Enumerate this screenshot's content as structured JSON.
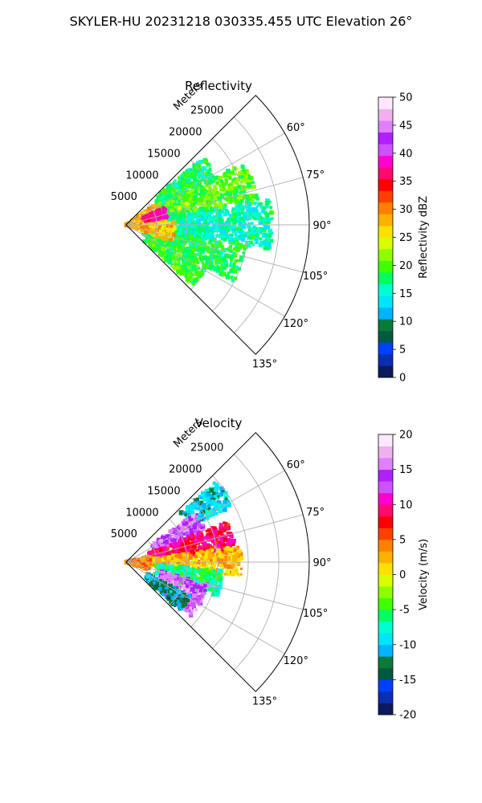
{
  "figure": {
    "suptitle": "SKYLER-HU  20231218  030335.455 UTC Elevation 26°"
  },
  "chart_data": [
    {
      "type": "heatmap",
      "subtype": "polar-sector",
      "title": "Reflectivity",
      "radial_label": "Meters",
      "radial_ticks": [
        5000,
        10000,
        15000,
        20000,
        25000
      ],
      "r_range": [
        0,
        30000
      ],
      "theta_ticks_deg": [
        60,
        75,
        90,
        105,
        120,
        135
      ],
      "theta_range_deg": [
        45,
        135
      ],
      "grid": true,
      "colorbar": {
        "label": "Reflectivity dBZ",
        "range": [
          0,
          50
        ],
        "ticks": [
          0,
          5,
          10,
          15,
          20,
          25,
          30,
          35,
          40,
          45,
          50
        ],
        "colormap": "pyart_HomeyerRainbow-like",
        "colors": [
          "#0b1a5c",
          "#0a2fb0",
          "#0040ff",
          "#005a40",
          "#0a7a3a",
          "#00b4ff",
          "#00e5ff",
          "#00ffd0",
          "#00ff60",
          "#40ff00",
          "#8cff00",
          "#d8ff00",
          "#ffe000",
          "#ffb000",
          "#ff8000",
          "#ff4000",
          "#ff0000",
          "#ff0a70",
          "#ff00d0",
          "#d050ff",
          "#b020ff",
          "#e080ff",
          "#f0b0f0",
          "#ffe8ff"
        ]
      },
      "echo_regions": [
        {
          "theta_deg": [
            48,
            62
          ],
          "r_km": [
            6,
            17
          ],
          "dBZ": 18
        },
        {
          "theta_deg": [
            62,
            80
          ],
          "r_km": [
            3,
            22
          ],
          "dBZ": 20
        },
        {
          "theta_deg": [
            80,
            100
          ],
          "r_km": [
            3,
            24
          ],
          "dBZ": 16
        },
        {
          "theta_deg": [
            100,
            118
          ],
          "r_km": [
            3,
            20
          ],
          "dBZ": 18
        },
        {
          "theta_deg": [
            118,
            132
          ],
          "r_km": [
            4,
            15
          ],
          "dBZ": 19
        },
        {
          "theta_deg": [
            55,
            85
          ],
          "r_km": [
            0,
            6
          ],
          "dBZ": 28
        },
        {
          "theta_deg": [
            85,
            110
          ],
          "r_km": [
            0,
            8
          ],
          "dBZ": 27
        },
        {
          "theta_deg": [
            65,
            80
          ],
          "r_km": [
            3,
            7
          ],
          "dBZ": 37
        }
      ]
    },
    {
      "type": "heatmap",
      "subtype": "polar-sector",
      "title": "Velocity",
      "radial_label": "Meters",
      "radial_ticks": [
        5000,
        10000,
        15000,
        20000,
        25000
      ],
      "r_range": [
        0,
        30000
      ],
      "theta_ticks_deg": [
        60,
        75,
        90,
        105,
        120,
        135
      ],
      "theta_range_deg": [
        45,
        135
      ],
      "grid": true,
      "colorbar": {
        "label": "Velocity (m/s)",
        "range": [
          -20,
          20
        ],
        "ticks": [
          -20,
          -15,
          -10,
          -5,
          0,
          5,
          10,
          15,
          20
        ],
        "colormap": "pyart_balance-like",
        "colors": [
          "#0b1a5c",
          "#0a2fb0",
          "#0040ff",
          "#005a40",
          "#0a7a3a",
          "#00b4ff",
          "#00e5ff",
          "#00ffd0",
          "#00ff60",
          "#40ff00",
          "#8cff00",
          "#d8ff00",
          "#ffe000",
          "#ffb000",
          "#ff8000",
          "#ff4000",
          "#ff0000",
          "#ff0a70",
          "#ff00d0",
          "#d050ff",
          "#b020ff",
          "#e080ff",
          "#f0b0f0",
          "#ffe8ff"
        ]
      },
      "echo_regions": [
        {
          "theta_deg": [
            48,
            62
          ],
          "r_km": [
            12,
            20
          ],
          "vel": -10
        },
        {
          "theta_deg": [
            55,
            70
          ],
          "r_km": [
            5,
            14
          ],
          "vel": 15
        },
        {
          "theta_deg": [
            68,
            85
          ],
          "r_km": [
            4,
            18
          ],
          "vel": 9
        },
        {
          "theta_deg": [
            82,
            97
          ],
          "r_km": [
            3,
            19
          ],
          "vel": 2
        },
        {
          "theta_deg": [
            95,
            112
          ],
          "r_km": [
            5,
            16
          ],
          "vel": -6
        },
        {
          "theta_deg": [
            105,
            130
          ],
          "r_km": [
            6,
            14
          ],
          "vel": 15
        },
        {
          "theta_deg": [
            118,
            132
          ],
          "r_km": [
            4,
            12
          ],
          "vel": -12
        },
        {
          "theta_deg": [
            75,
            110
          ],
          "r_km": [
            0,
            4
          ],
          "vel": 4
        }
      ]
    }
  ]
}
